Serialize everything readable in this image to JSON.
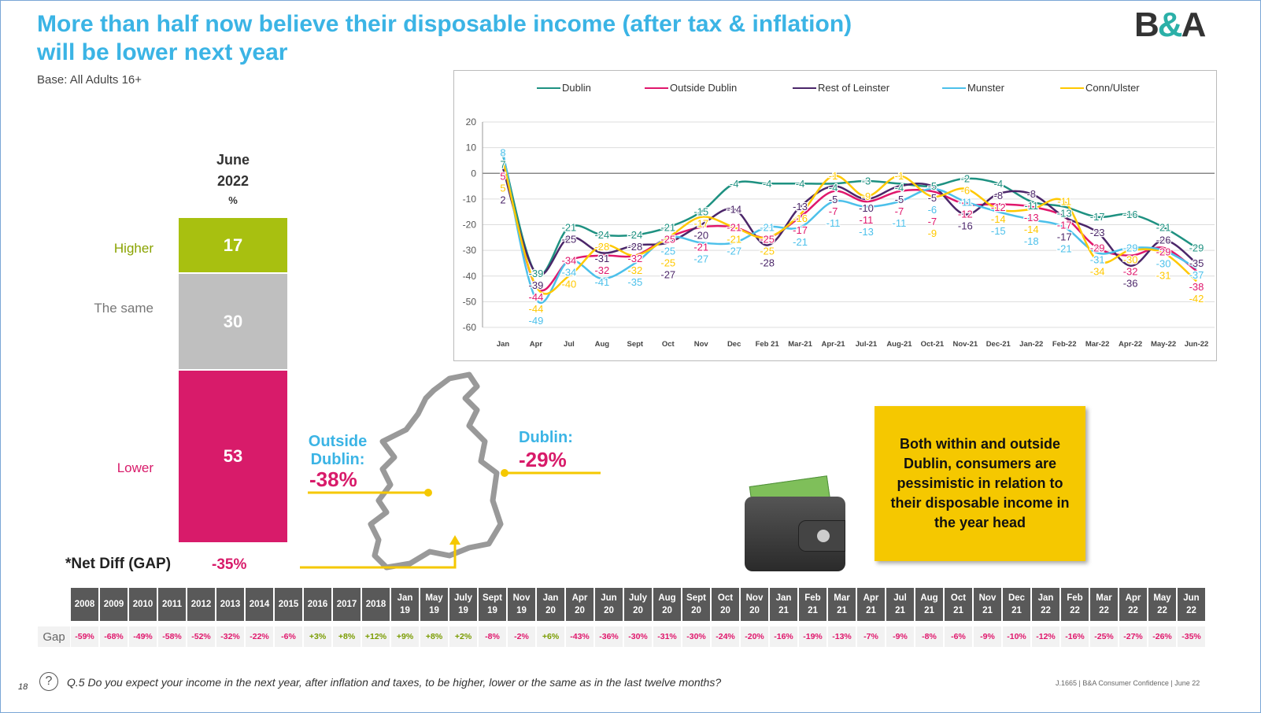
{
  "title": "More than half now believe their disposable income (after tax & inflation) will be lower next year",
  "base": "Base: All Adults 16+",
  "logo": "B&A",
  "june_bar": {
    "heading1": "June",
    "heading2": "2022",
    "unit": "%",
    "segments": [
      {
        "label": "Higher",
        "value": "17",
        "color": "#a8c010"
      },
      {
        "label": "The same",
        "value": "30",
        "color": "#bfbfbf"
      },
      {
        "label": "Lower",
        "value": "53",
        "color": "#d81b6a"
      }
    ],
    "net_label": "*Net Diff (GAP)",
    "net_value": "-35%"
  },
  "map": {
    "outside_label": "Outside Dublin:",
    "outside_value": "-38%",
    "dublin_label": "Dublin:",
    "dublin_value": "-29%"
  },
  "callout": "Both within and outside Dublin, consumers are pessimistic in relation to their disposable income in the year head",
  "chart_data": {
    "type": "line",
    "title": "",
    "xlabel": "",
    "ylabel": "",
    "ylim": [
      -60,
      20
    ],
    "yticks": [
      20,
      10,
      0,
      -10,
      -20,
      -30,
      -40,
      -50,
      -60
    ],
    "legend": "top",
    "categories": [
      "Jan",
      "Apr",
      "Jul",
      "Aug",
      "Sept",
      "Oct",
      "Nov",
      "Dec",
      "Feb 21",
      "Mar-21",
      "Apr-21",
      "Jul-21",
      "Aug-21",
      "Oct-21",
      "Nov-21",
      "Dec-21",
      "Jan-22",
      "Feb-22",
      "Mar-22",
      "Apr-22",
      "May-22",
      "Jun-22"
    ],
    "series": [
      {
        "name": "Dublin",
        "color": "#1e9181",
        "values": [
          7,
          -39,
          -21,
          -24,
          -24,
          -21,
          -15,
          -4,
          -4,
          -4,
          -4,
          -3,
          -4,
          -5,
          -2,
          -4,
          -11,
          -13,
          -17,
          -16,
          -21,
          -29
        ]
      },
      {
        "name": "Outside Dublin",
        "color": "#e0176c",
        "values": [
          5,
          -44,
          -34,
          -32,
          -32,
          -25,
          -21,
          -21,
          -25,
          -17,
          -7,
          -11,
          -7,
          -7,
          -12,
          -12,
          -13,
          -17,
          -29,
          -32,
          -29,
          -38
        ]
      },
      {
        "name": "Rest of Leinster",
        "color": "#4b2669",
        "values": [
          2,
          -39,
          -25,
          -31,
          -28,
          -27,
          -20,
          -14,
          -28,
          -13,
          -5,
          -10,
          -5,
          -5,
          -16,
          -8,
          -8,
          -17,
          -23,
          -36,
          -26,
          -35
        ]
      },
      {
        "name": "Munster",
        "color": "#4cc0ea",
        "values": [
          8,
          -49,
          -34,
          -41,
          -35,
          -25,
          -27,
          -27,
          -21,
          -21,
          -11,
          -13,
          -11,
          -6,
          -11,
          -15,
          -18,
          -21,
          -31,
          -29,
          -30,
          -37
        ]
      },
      {
        "name": "Conn/Ulster",
        "color": "#ffc800",
        "values": [
          5,
          -44,
          -40,
          -28,
          -32,
          -25,
          -17,
          -21,
          -25,
          -16,
          -1,
          -9,
          -1,
          -9,
          -6,
          -14,
          -14,
          -11,
          -34,
          -30,
          -31,
          -42
        ]
      }
    ]
  },
  "gap_table": {
    "row_label": "Gap",
    "headers": [
      "2008",
      "2009",
      "2010",
      "2011",
      "2012",
      "2013",
      "2014",
      "2015",
      "2016",
      "2017",
      "2018",
      "Jan 19",
      "May 19",
      "July 19",
      "Sept 19",
      "Nov 19",
      "Jan 20",
      "Apr 20",
      "Jun 20",
      "July 20",
      "Aug 20",
      "Sept 20",
      "Oct 20",
      "Nov 20",
      "Jan 21",
      "Feb 21",
      "Mar 21",
      "Apr 21",
      "Jul 21",
      "Aug 21",
      "Oct 21",
      "Nov 21",
      "Dec 21",
      "Jan 22",
      "Feb 22",
      "Mar 22",
      "Apr 22",
      "May 22",
      "Jun 22"
    ],
    "values": [
      "-59%",
      "-68%",
      "-49%",
      "-58%",
      "-52%",
      "-32%",
      "-22%",
      "-6%",
      "+3%",
      "+8%",
      "+12%",
      "+9%",
      "+8%",
      "+2%",
      "-8%",
      "-2%",
      "+6%",
      "-43%",
      "-36%",
      "-30%",
      "-31%",
      "-30%",
      "-24%",
      "-20%",
      "-16%",
      "-19%",
      "-13%",
      "-7%",
      "-9%",
      "-8%",
      "-6%",
      "-9%",
      "-10%",
      "-12%",
      "-16%",
      "-25%",
      "-27%",
      "-26%",
      "-35%"
    ],
    "positive_color": "#7a9c00",
    "negative_color": "#e0176c"
  },
  "footer": {
    "page": "18",
    "question": "Q.5  Do you expect your income in the next year, after inflation and taxes, to be higher, lower or the same as in the last twelve months?",
    "source": "J.1665 | B&A Consumer Confidence | June 22"
  }
}
